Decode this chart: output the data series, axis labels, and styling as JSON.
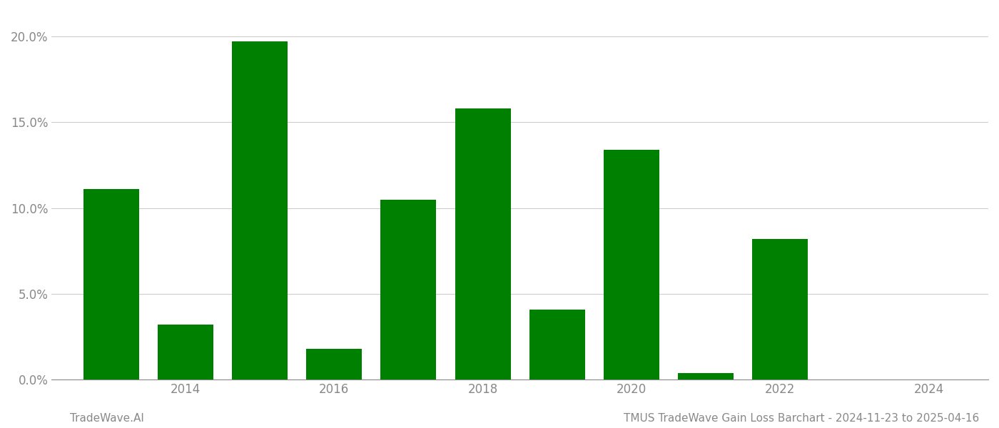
{
  "years": [
    2013,
    2014,
    2015,
    2016,
    2017,
    2018,
    2019,
    2020,
    2021,
    2022,
    2023
  ],
  "values": [
    0.111,
    0.032,
    0.197,
    0.018,
    0.105,
    0.158,
    0.041,
    0.134,
    0.004,
    0.082,
    0.0
  ],
  "bar_color": "#008000",
  "title": "TMUS TradeWave Gain Loss Barchart - 2024-11-23 to 2025-04-16",
  "watermark": "TradeWave.AI",
  "ylim": [
    0,
    0.215
  ],
  "yticks": [
    0.0,
    0.05,
    0.1,
    0.15,
    0.2
  ],
  "ytick_labels": [
    "0.0%",
    "5.0%",
    "10.0%",
    "15.0%",
    "20.0%"
  ],
  "xtick_positions": [
    2014,
    2016,
    2018,
    2020,
    2022,
    2024
  ],
  "xtick_labels": [
    "2014",
    "2016",
    "2018",
    "2020",
    "2022",
    "2024"
  ],
  "xlim_left": 2012.2,
  "xlim_right": 2024.8,
  "background_color": "#ffffff",
  "grid_color": "#cccccc",
  "bar_width": 0.75,
  "title_fontsize": 11,
  "tick_fontsize": 12,
  "watermark_fontsize": 11,
  "axis_label_color": "#888888"
}
